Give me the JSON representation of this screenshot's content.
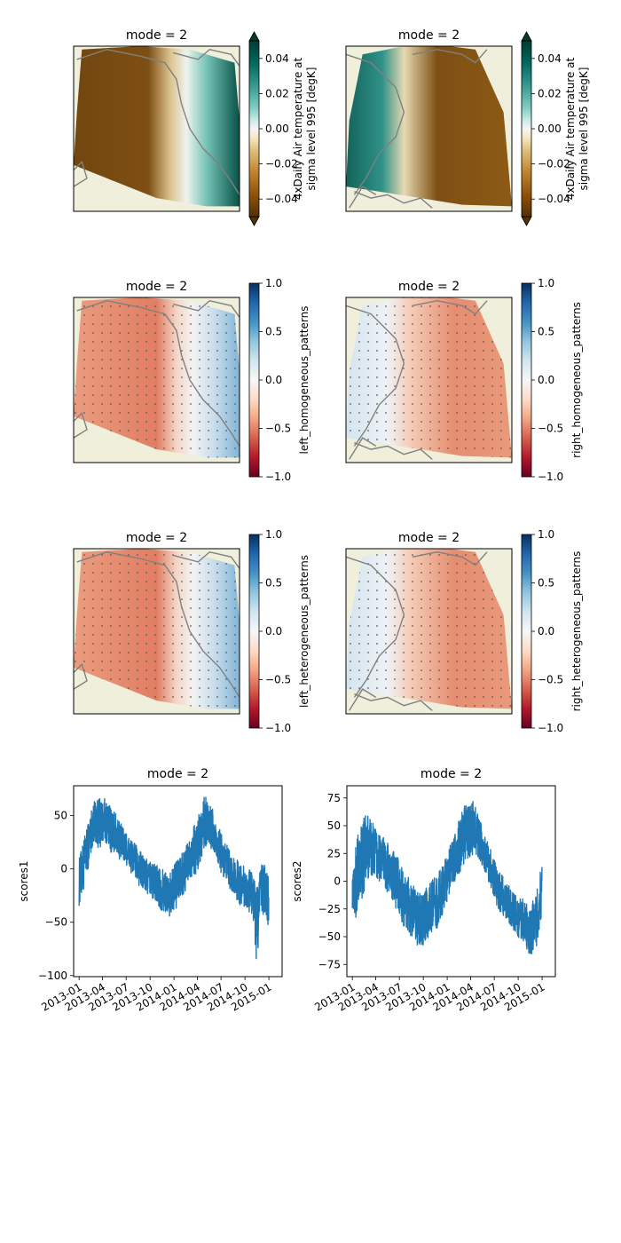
{
  "figure": {
    "map_rows": [
      {
        "type": "field",
        "panels": [
          {
            "title": "mode = 2",
            "cbar_label_lines": [
              "4xDaily Air temperature at",
              "sigma level 995 [degK]"
            ],
            "cbar_ticks": [
              "0.04",
              "0.02",
              "0.00",
              "−0.02",
              "−0.04"
            ],
            "cbar_range": [
              -0.05,
              0.05
            ],
            "colormap": "BrBG"
          },
          {
            "title": "mode = 2",
            "cbar_label_lines": [
              "4xDaily Air temperature at",
              "sigma level 995 [degK]"
            ],
            "cbar_ticks": [
              "0.04",
              "0.02",
              "0.00",
              "−0.02",
              "−0.04"
            ],
            "cbar_range": [
              -0.05,
              0.05
            ],
            "colormap": "BrBG"
          }
        ]
      },
      {
        "type": "correlation",
        "panels": [
          {
            "title": "mode = 2",
            "cbar_label_lines": [
              "left_homogeneous_patterns"
            ],
            "cbar_ticks": [
              "1.0",
              "0.5",
              "0.0",
              "−0.5",
              "−1.0"
            ],
            "cbar_range": [
              -1,
              1
            ],
            "colormap": "RdBu"
          },
          {
            "title": "mode = 2",
            "cbar_label_lines": [
              "right_homogeneous_patterns"
            ],
            "cbar_ticks": [
              "1.0",
              "0.5",
              "0.0",
              "−0.5",
              "−1.0"
            ],
            "cbar_range": [
              -1,
              1
            ],
            "colormap": "RdBu"
          }
        ]
      },
      {
        "type": "correlation",
        "panels": [
          {
            "title": "mode = 2",
            "cbar_label_lines": [
              "left_heterogeneous_patterns"
            ],
            "cbar_ticks": [
              "1.0",
              "0.5",
              "0.0",
              "−0.5",
              "−1.0"
            ],
            "cbar_range": [
              -1,
              1
            ],
            "colormap": "RdBu"
          },
          {
            "title": "mode = 2",
            "cbar_label_lines": [
              "right_heterogeneous_patterns"
            ],
            "cbar_ticks": [
              "1.0",
              "0.5",
              "0.0",
              "−0.5",
              "−1.0"
            ],
            "cbar_range": [
              -1,
              1
            ],
            "colormap": "RdBu"
          }
        ]
      }
    ],
    "colors": {
      "line": "#1f77b4",
      "coast": "#808080",
      "land": "#efefdb",
      "axes": "#000000"
    }
  },
  "chart_data": [
    {
      "type": "line",
      "title": "mode = 2",
      "ylabel": "scores1",
      "xlabel": "",
      "ylim": [
        -101,
        78
      ],
      "xlim": [
        "2012-12-11",
        "2015-02-21"
      ],
      "y_ticks": [
        "50",
        "0",
        "−50",
        "−100"
      ],
      "y_tick_values": [
        50,
        0,
        -50,
        -100
      ],
      "x_ticks": [
        "2013-01",
        "2013-04",
        "2013-07",
        "2013-10",
        "2014-01",
        "2014-04",
        "2014-07",
        "2014-10",
        "2015-01"
      ],
      "x_tick_dates": [
        "2013-01-01",
        "2013-04-01",
        "2013-07-01",
        "2013-10-01",
        "2014-01-01",
        "2014-04-01",
        "2014-07-01",
        "2014-10-01",
        "2015-01-01"
      ],
      "series": [
        {
          "x": [
            "2013-01-01",
            "2013-01-15",
            "2013-02-01",
            "2013-02-15",
            "2013-03-01",
            "2013-03-15",
            "2013-04-01",
            "2013-04-15",
            "2013-05-01",
            "2013-05-15",
            "2013-06-01",
            "2013-06-15",
            "2013-07-01",
            "2013-07-15",
            "2013-08-01",
            "2013-08-15",
            "2013-09-01",
            "2013-09-15",
            "2013-10-01",
            "2013-10-15",
            "2013-11-01",
            "2013-11-15",
            "2013-12-01",
            "2013-12-15",
            "2014-01-01",
            "2014-01-15",
            "2014-02-01",
            "2014-02-15",
            "2014-03-01",
            "2014-03-15",
            "2014-04-01",
            "2014-04-15",
            "2014-05-01",
            "2014-05-15",
            "2014-06-01",
            "2014-06-15",
            "2014-07-01",
            "2014-07-15",
            "2014-08-01",
            "2014-08-15",
            "2014-09-01",
            "2014-09-15",
            "2014-10-01",
            "2014-10-15",
            "2014-11-01",
            "2014-11-15",
            "2014-12-01",
            "2014-12-15",
            "2015-01-01"
          ],
          "low": [
            -35,
            -25,
            -5,
            15,
            25,
            20,
            20,
            25,
            15,
            15,
            10,
            5,
            5,
            -5,
            -5,
            -15,
            -20,
            -25,
            -25,
            -30,
            -35,
            -40,
            -40,
            -45,
            -40,
            -35,
            -30,
            -20,
            -15,
            -5,
            -5,
            10,
            20,
            25,
            10,
            5,
            -5,
            -15,
            -20,
            -25,
            -30,
            -35,
            -35,
            -40,
            -45,
            -90,
            -45,
            -45,
            -55
          ],
          "high": [
            10,
            25,
            40,
            55,
            65,
            65,
            68,
            65,
            60,
            55,
            50,
            40,
            35,
            30,
            25,
            20,
            15,
            10,
            10,
            5,
            5,
            0,
            0,
            -5,
            5,
            10,
            15,
            20,
            30,
            40,
            45,
            60,
            70,
            65,
            55,
            45,
            35,
            25,
            20,
            10,
            10,
            5,
            5,
            0,
            -5,
            -15,
            5,
            10,
            -10
          ]
        }
      ]
    },
    {
      "type": "line",
      "title": "mode = 2",
      "ylabel": "scores2",
      "xlabel": "",
      "ylim": [
        -86,
        86
      ],
      "xlim": [
        "2012-12-11",
        "2015-02-21"
      ],
      "y_ticks": [
        "75",
        "50",
        "25",
        "0",
        "−25",
        "−50",
        "−75"
      ],
      "y_tick_values": [
        75,
        50,
        25,
        0,
        -25,
        -50,
        -75
      ],
      "x_ticks": [
        "2013-01",
        "2013-04",
        "2013-07",
        "2013-10",
        "2014-01",
        "2014-04",
        "2014-07",
        "2014-10",
        "2015-01"
      ],
      "x_tick_dates": [
        "2013-01-01",
        "2013-04-01",
        "2013-07-01",
        "2013-10-01",
        "2014-01-01",
        "2014-04-01",
        "2014-07-01",
        "2014-10-01",
        "2015-01-01"
      ],
      "series": [
        {
          "x": [
            "2013-01-01",
            "2013-01-15",
            "2013-02-01",
            "2013-02-15",
            "2013-03-01",
            "2013-03-15",
            "2013-04-01",
            "2013-04-15",
            "2013-05-01",
            "2013-05-15",
            "2013-06-01",
            "2013-06-15",
            "2013-07-01",
            "2013-07-15",
            "2013-08-01",
            "2013-08-15",
            "2013-09-01",
            "2013-09-15",
            "2013-10-01",
            "2013-10-15",
            "2013-11-01",
            "2013-11-15",
            "2013-12-01",
            "2013-12-15",
            "2014-01-01",
            "2014-01-15",
            "2014-02-01",
            "2014-02-15",
            "2014-03-01",
            "2014-03-15",
            "2014-04-01",
            "2014-04-15",
            "2014-05-01",
            "2014-05-15",
            "2014-06-01",
            "2014-06-15",
            "2014-07-01",
            "2014-07-15",
            "2014-08-01",
            "2014-08-15",
            "2014-09-01",
            "2014-09-15",
            "2014-10-01",
            "2014-10-15",
            "2014-11-01",
            "2014-11-15",
            "2014-12-01",
            "2014-12-15",
            "2015-01-01"
          ],
          "low": [
            -25,
            -35,
            -20,
            -10,
            0,
            5,
            5,
            0,
            -5,
            -10,
            -15,
            -25,
            -30,
            -40,
            -45,
            -50,
            -55,
            -60,
            -60,
            -55,
            -50,
            -45,
            -40,
            -30,
            -20,
            -10,
            0,
            5,
            10,
            15,
            20,
            25,
            20,
            15,
            5,
            -5,
            -15,
            -25,
            -30,
            -35,
            -40,
            -45,
            -50,
            -55,
            -60,
            -70,
            -65,
            -55,
            -30
          ],
          "high": [
            25,
            35,
            50,
            60,
            60,
            55,
            50,
            45,
            40,
            35,
            30,
            25,
            20,
            10,
            5,
            0,
            -5,
            -10,
            -10,
            -5,
            0,
            5,
            10,
            15,
            25,
            35,
            45,
            55,
            65,
            70,
            75,
            70,
            60,
            50,
            40,
            30,
            20,
            10,
            5,
            0,
            -5,
            -10,
            -15,
            -15,
            -20,
            -25,
            -15,
            0,
            15
          ]
        }
      ]
    }
  ]
}
